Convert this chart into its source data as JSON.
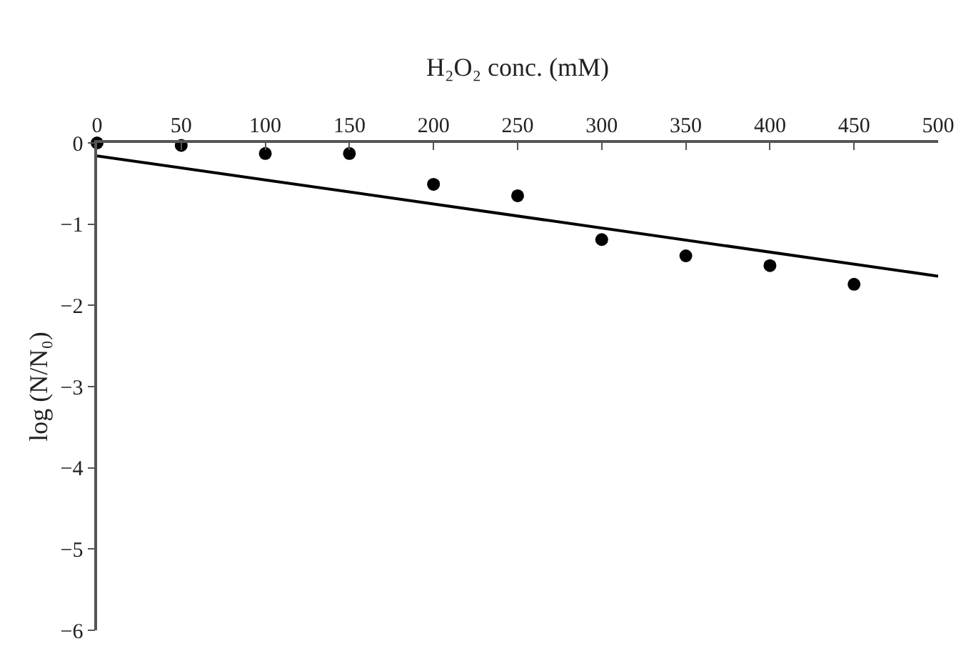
{
  "chart_data": {
    "type": "scatter",
    "xlabel": "H₂O₂ conc. (mM)",
    "ylabel": "log (N/N₀)",
    "x": [
      0,
      50,
      100,
      150,
      200,
      250,
      300,
      350,
      400,
      450
    ],
    "series": [
      {
        "color": "#000000",
        "marker": "circle",
        "values": [
          0,
          -0.03,
          -0.13,
          -0.13,
          -0.51,
          -0.65,
          -1.19,
          -1.39,
          -1.51,
          -1.74
        ]
      },
      {
        "type": "line",
        "color": "#000000",
        "line_style": "solid",
        "x": [
          0,
          500
        ],
        "values": [
          -0.16,
          -1.64
        ]
      }
    ],
    "xlim": [
      0,
      500
    ],
    "xticks": [
      0,
      50,
      100,
      150,
      200,
      250,
      300,
      350,
      400,
      450,
      500
    ],
    "ylim": [
      -6,
      0
    ],
    "yticks": [
      {
        "value": 0,
        "label": "0"
      },
      {
        "value": -1,
        "label": "−1"
      },
      {
        "value": -2,
        "label": "−2"
      },
      {
        "value": -3,
        "label": "−3"
      },
      {
        "value": -4,
        "label": "−4"
      },
      {
        "value": -5,
        "label": "−5"
      },
      {
        "value": -6,
        "label": "−6"
      }
    ],
    "tick_labels": [
      "x",
      "y"
    ]
  }
}
